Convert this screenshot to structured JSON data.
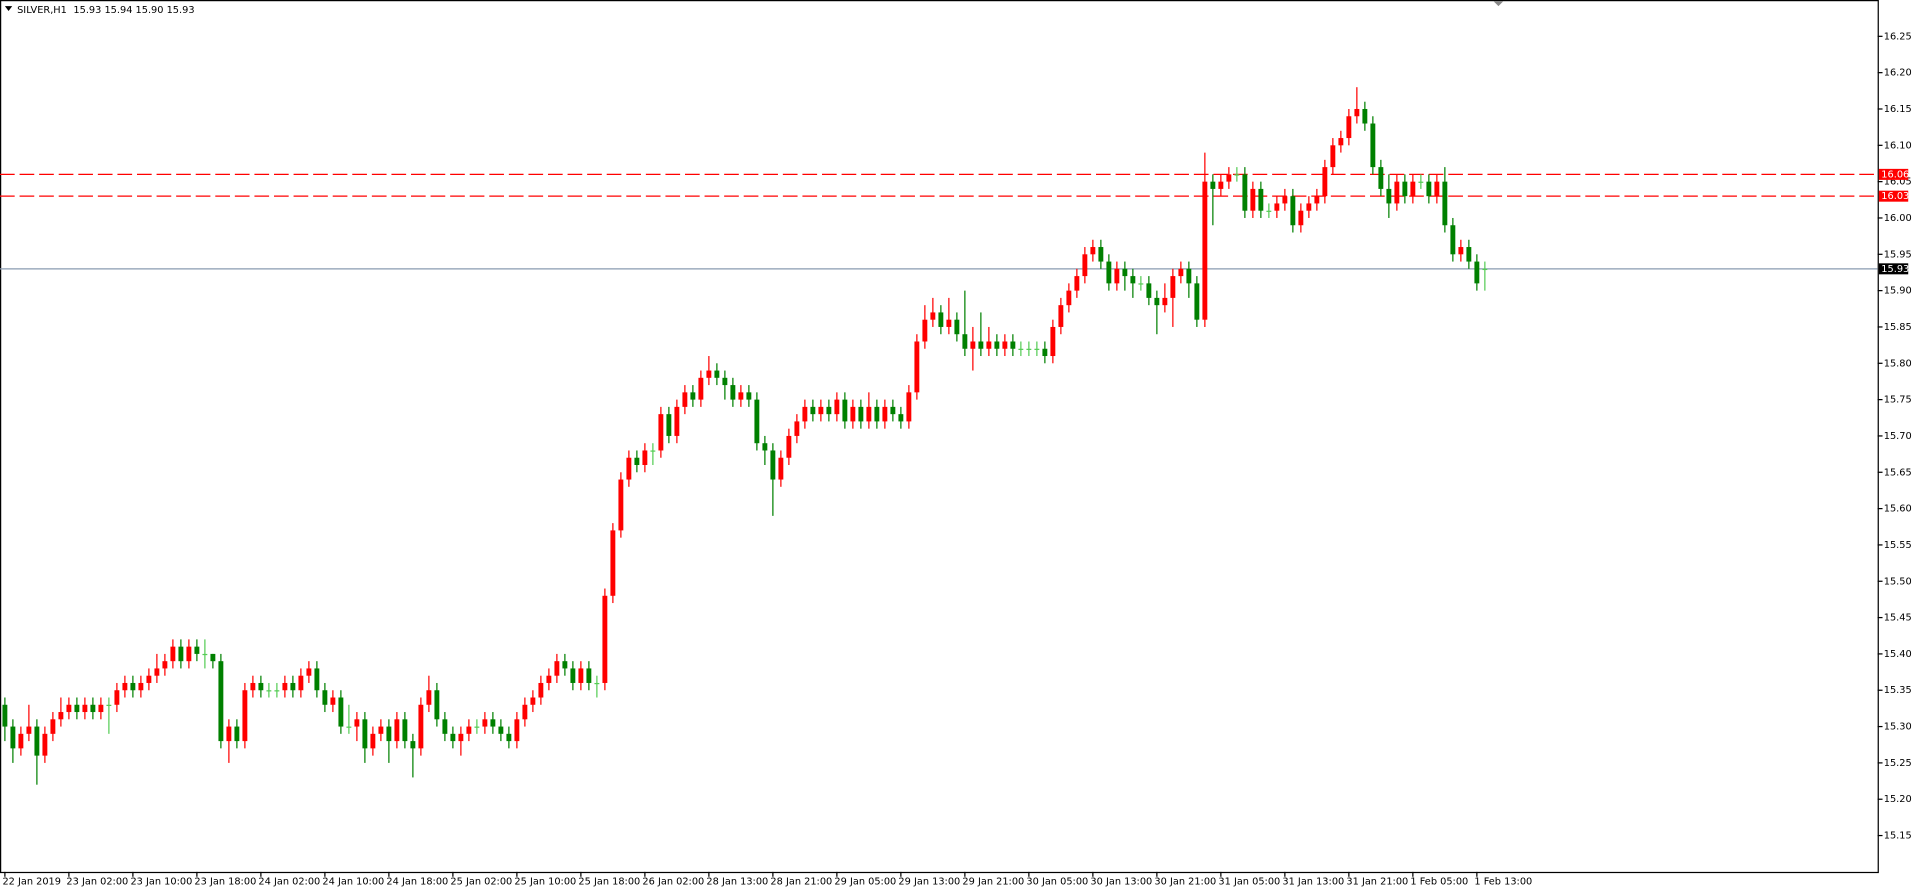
{
  "chart_data": {
    "type": "candlestick",
    "title": "SILVER,H1",
    "header": "15.93 15.94 15.90 15.93",
    "up_color": "#ff0000",
    "down_color": "#008000",
    "doji_color": "#55cc55",
    "ylim": [
      15.1,
      16.3
    ],
    "yticks": [
      15.15,
      {
        "value": 15.2,
        "label": "15.20"
      },
      15.25,
      {
        "value": 15.3,
        "label": "15.30"
      },
      15.35,
      {
        "value": 15.4,
        "label": "15.40"
      },
      15.45,
      {
        "value": 15.5,
        "label": "15.50"
      },
      15.55,
      {
        "value": 15.6,
        "label": "15.60"
      },
      15.65,
      {
        "value": 15.7,
        "label": "15.70"
      },
      15.75,
      {
        "value": 15.8,
        "label": "15.80"
      },
      15.85,
      {
        "value": 15.9,
        "label": "15.90"
      },
      15.95,
      {
        "value": 16,
        "label": "16.00"
      },
      16.05,
      {
        "value": 16.1,
        "label": "16.10"
      },
      16.15,
      {
        "value": 16.2,
        "label": "16.20"
      },
      16.25
    ],
    "levels": [
      {
        "value": 16.06,
        "color": "#ff0000",
        "style": "dashed"
      },
      {
        "value": 16.03,
        "color": "#ff0000",
        "style": "dashed"
      },
      {
        "value": 15.93,
        "color": "#8a9bb0",
        "style": "solid",
        "label_color": "#000000"
      }
    ],
    "categories": [
      "22 Jan 2019",
      null,
      null,
      null,
      null,
      null,
      null,
      null,
      "23 Jan 02:00",
      null,
      null,
      null,
      null,
      null,
      null,
      null,
      "23 Jan 10:00",
      null,
      null,
      null,
      null,
      null,
      null,
      null,
      "23 Jan 18:00",
      null,
      null,
      null,
      null,
      null,
      null,
      null,
      "24 Jan 02:00",
      null,
      null,
      null,
      null,
      null,
      null,
      null,
      "24 Jan 10:00",
      null,
      null,
      null,
      null,
      null,
      null,
      null,
      "24 Jan 18:00",
      null,
      null,
      null,
      null,
      null,
      null,
      null,
      "25 Jan 02:00",
      null,
      null,
      null,
      null,
      null,
      null,
      null,
      "25 Jan 10:00",
      null,
      null,
      null,
      null,
      null,
      null,
      null,
      "25 Jan 18:00",
      null,
      null,
      null,
      null,
      null,
      null,
      null,
      "26 Jan 02:00",
      null,
      null,
      null,
      null,
      null,
      null,
      null,
      "28 Jan 13:00",
      null,
      null,
      null,
      null,
      null,
      null,
      null,
      "28 Jan 21:00",
      null,
      null,
      null,
      null,
      null,
      null,
      null,
      "29 Jan 05:00",
      null,
      null,
      null,
      null,
      null,
      null,
      null,
      "29 Jan 13:00",
      null,
      null,
      null,
      null,
      null,
      null,
      null,
      "29 Jan 21:00",
      null,
      null,
      null,
      null,
      null,
      null,
      null,
      "30 Jan 05:00",
      null,
      null,
      null,
      null,
      null,
      null,
      null,
      "30 Jan 13:00",
      null,
      null,
      null,
      null,
      null,
      null,
      null,
      "30 Jan 21:00",
      null,
      null,
      null,
      null,
      null,
      null,
      null,
      "31 Jan 05:00",
      null,
      null,
      null,
      null,
      null,
      null,
      null,
      "31 Jan 13:00",
      null,
      null,
      null,
      null,
      null,
      null,
      null,
      "31 Jan 21:00",
      null,
      null,
      null,
      null,
      null,
      null,
      null,
      "1 Feb 05:00",
      null,
      null,
      null,
      null,
      null,
      null,
      null,
      "1 Feb 13:00",
      null
    ],
    "open": [
      15.33,
      15.3,
      15.27,
      15.29,
      15.3,
      15.26,
      15.29,
      15.31,
      15.32,
      15.33,
      15.32,
      15.33,
      15.32,
      15.33,
      15.33,
      15.35,
      15.36,
      15.35,
      15.36,
      15.37,
      15.38,
      15.39,
      15.41,
      15.39,
      15.41,
      15.4,
      15.4,
      15.39,
      15.28,
      15.3,
      15.28,
      15.35,
      15.36,
      15.35,
      15.35,
      15.35,
      15.36,
      15.35,
      15.37,
      15.38,
      15.35,
      15.33,
      15.34,
      15.3,
      15.3,
      15.31,
      15.27,
      15.29,
      15.3,
      15.28,
      15.31,
      15.28,
      15.27,
      15.33,
      15.35,
      15.31,
      15.29,
      15.28,
      15.29,
      15.3,
      15.3,
      15.31,
      15.3,
      15.29,
      15.28,
      15.31,
      15.33,
      15.34,
      15.36,
      15.37,
      15.39,
      15.38,
      15.36,
      15.38,
      15.36,
      15.36,
      15.48,
      15.57,
      15.64,
      15.67,
      15.66,
      15.68,
      15.68,
      15.73,
      15.7,
      15.74,
      15.76,
      15.75,
      15.78,
      15.79,
      15.78,
      15.77,
      15.75,
      15.76,
      15.75,
      15.69,
      15.68,
      15.64,
      15.67,
      15.7,
      15.72,
      15.74,
      15.73,
      15.74,
      15.73,
      15.75,
      15.72,
      15.74,
      15.72,
      15.74,
      15.72,
      15.74,
      15.73,
      15.72,
      15.76,
      15.83,
      15.86,
      15.87,
      15.85,
      15.86,
      15.84,
      15.82,
      15.83,
      15.82,
      15.83,
      15.82,
      15.83,
      15.82,
      15.82,
      15.82,
      15.82,
      15.81,
      15.85,
      15.88,
      15.9,
      15.92,
      15.95,
      15.96,
      15.94,
      15.91,
      15.93,
      15.92,
      15.91,
      15.91,
      15.89,
      15.88,
      15.89,
      15.92,
      15.93,
      15.91,
      15.86,
      16.05,
      16.04,
      16.05,
      16.06,
      16.06,
      16.01,
      16.04,
      16.01,
      16.01,
      16.02,
      16.03,
      15.99,
      16.01,
      16.02,
      16.03,
      16.07,
      16.1,
      16.11,
      16.14,
      16.15,
      16.13,
      16.07,
      16.04,
      16.02,
      16.05,
      16.03,
      16.05,
      16.05,
      16.03,
      16.05,
      15.99,
      15.95,
      15.96,
      15.94,
      15.93
    ],
    "high": [
      15.34,
      15.31,
      15.3,
      15.33,
      15.31,
      15.3,
      15.32,
      15.34,
      15.34,
      15.34,
      15.34,
      15.34,
      15.34,
      15.34,
      15.36,
      15.37,
      15.37,
      15.37,
      15.38,
      15.4,
      15.4,
      15.42,
      15.42,
      15.42,
      15.42,
      15.42,
      15.4,
      15.4,
      15.31,
      15.31,
      15.36,
      15.37,
      15.37,
      15.36,
      15.36,
      15.37,
      15.37,
      15.38,
      15.39,
      15.39,
      15.36,
      15.35,
      15.35,
      15.33,
      15.32,
      15.32,
      15.3,
      15.31,
      15.31,
      15.32,
      15.32,
      15.29,
      15.34,
      15.37,
      15.36,
      15.32,
      15.3,
      15.3,
      15.31,
      15.31,
      15.32,
      15.32,
      15.31,
      15.3,
      15.32,
      15.34,
      15.35,
      15.37,
      15.38,
      15.4,
      15.4,
      15.39,
      15.39,
      15.39,
      15.37,
      15.49,
      15.58,
      15.65,
      15.68,
      15.68,
      15.69,
      15.69,
      15.74,
      15.74,
      15.75,
      15.77,
      15.77,
      15.79,
      15.81,
      15.8,
      15.79,
      15.78,
      15.77,
      15.77,
      15.76,
      15.7,
      15.69,
      15.68,
      15.71,
      15.73,
      15.75,
      15.75,
      15.75,
      15.75,
      15.76,
      15.76,
      15.75,
      15.75,
      15.76,
      15.75,
      15.75,
      15.75,
      15.74,
      15.77,
      15.84,
      15.88,
      15.89,
      15.88,
      15.89,
      15.87,
      15.9,
      15.85,
      15.87,
      15.85,
      15.84,
      15.84,
      15.84,
      15.83,
      15.83,
      15.83,
      15.83,
      15.86,
      15.89,
      15.91,
      15.93,
      15.96,
      15.97,
      15.97,
      15.95,
      15.94,
      15.94,
      15.93,
      15.92,
      15.92,
      15.9,
      15.91,
      15.93,
      15.94,
      15.94,
      15.92,
      16.09,
      16.06,
      16.06,
      16.07,
      16.07,
      16.07,
      16.05,
      16.05,
      16.02,
      16.03,
      16.04,
      16.04,
      16.02,
      16.03,
      16.04,
      16.08,
      16.11,
      16.12,
      16.15,
      16.18,
      16.16,
      16.14,
      16.08,
      16.06,
      16.06,
      16.06,
      16.06,
      16.06,
      16.06,
      16.06,
      16.07,
      16.0,
      15.97,
      15.97,
      15.95,
      15.94
    ],
    "low": [
      15.28,
      15.25,
      15.26,
      15.28,
      15.22,
      15.25,
      15.28,
      15.3,
      15.31,
      15.31,
      15.31,
      15.31,
      15.31,
      15.29,
      15.32,
      15.34,
      15.34,
      15.34,
      15.35,
      15.36,
      15.37,
      15.38,
      15.38,
      15.38,
      15.39,
      15.38,
      15.38,
      15.27,
      15.25,
      15.27,
      15.27,
      15.34,
      15.34,
      15.34,
      15.34,
      15.34,
      15.34,
      15.34,
      15.36,
      15.34,
      15.32,
      15.32,
      15.29,
      15.29,
      15.28,
      15.25,
      15.26,
      15.28,
      15.25,
      15.27,
      15.27,
      15.23,
      15.26,
      15.32,
      15.3,
      15.28,
      15.27,
      15.26,
      15.28,
      15.29,
      15.29,
      15.29,
      15.28,
      15.27,
      15.27,
      15.3,
      15.32,
      15.33,
      15.35,
      15.36,
      15.37,
      15.35,
      15.35,
      15.35,
      15.34,
      15.35,
      15.47,
      15.56,
      15.63,
      15.65,
      15.65,
      15.66,
      15.67,
      15.69,
      15.69,
      15.73,
      15.74,
      15.74,
      15.77,
      15.77,
      15.75,
      15.74,
      15.74,
      15.74,
      15.68,
      15.66,
      15.59,
      15.63,
      15.66,
      15.69,
      15.71,
      15.72,
      15.72,
      15.72,
      15.72,
      15.71,
      15.71,
      15.71,
      15.71,
      15.71,
      15.71,
      15.72,
      15.71,
      15.71,
      15.75,
      15.82,
      15.85,
      15.84,
      15.84,
      15.83,
      15.81,
      15.79,
      15.81,
      15.81,
      15.81,
      15.81,
      15.81,
      15.81,
      15.81,
      15.81,
      15.8,
      15.8,
      15.84,
      15.87,
      15.89,
      15.91,
      15.94,
      15.93,
      15.9,
      15.9,
      15.9,
      15.89,
      15.9,
      15.88,
      15.84,
      15.87,
      15.85,
      15.91,
      15.89,
      15.85,
      15.85,
      15.99,
      16.03,
      16.04,
      16.05,
      16.0,
      16.0,
      16.0,
      16.0,
      16.0,
      16.01,
      15.98,
      15.98,
      16.0,
      16.01,
      16.02,
      16.06,
      16.09,
      16.1,
      16.13,
      16.12,
      16.06,
      16.03,
      16.0,
      16.01,
      16.02,
      16.02,
      16.04,
      16.02,
      16.02,
      15.98,
      15.94,
      15.94,
      15.93,
      15.9,
      15.9
    ],
    "close": [
      15.3,
      15.27,
      15.29,
      15.3,
      15.26,
      15.29,
      15.31,
      15.32,
      15.33,
      15.32,
      15.33,
      15.32,
      15.33,
      15.33,
      15.35,
      15.36,
      15.35,
      15.36,
      15.37,
      15.38,
      15.39,
      15.41,
      15.39,
      15.41,
      15.4,
      15.4,
      15.39,
      15.28,
      15.3,
      15.28,
      15.35,
      15.36,
      15.35,
      15.35,
      15.35,
      15.36,
      15.35,
      15.37,
      15.38,
      15.35,
      15.33,
      15.34,
      15.3,
      15.3,
      15.31,
      15.27,
      15.29,
      15.3,
      15.28,
      15.31,
      15.28,
      15.27,
      15.33,
      15.35,
      15.31,
      15.29,
      15.28,
      15.29,
      15.3,
      15.3,
      15.31,
      15.3,
      15.29,
      15.28,
      15.31,
      15.33,
      15.34,
      15.36,
      15.37,
      15.39,
      15.38,
      15.36,
      15.38,
      15.36,
      15.36,
      15.48,
      15.57,
      15.64,
      15.67,
      15.66,
      15.68,
      15.68,
      15.73,
      15.7,
      15.74,
      15.76,
      15.75,
      15.78,
      15.79,
      15.78,
      15.77,
      15.75,
      15.76,
      15.75,
      15.69,
      15.68,
      15.64,
      15.67,
      15.7,
      15.72,
      15.74,
      15.73,
      15.74,
      15.73,
      15.75,
      15.72,
      15.74,
      15.72,
      15.74,
      15.72,
      15.74,
      15.73,
      15.72,
      15.76,
      15.83,
      15.86,
      15.87,
      15.85,
      15.86,
      15.84,
      15.82,
      15.83,
      15.82,
      15.83,
      15.82,
      15.83,
      15.82,
      15.82,
      15.82,
      15.82,
      15.81,
      15.85,
      15.88,
      15.9,
      15.92,
      15.95,
      15.96,
      15.94,
      15.91,
      15.93,
      15.92,
      15.91,
      15.91,
      15.89,
      15.88,
      15.89,
      15.92,
      15.93,
      15.91,
      15.86,
      16.05,
      16.04,
      16.05,
      16.06,
      16.06,
      16.01,
      16.04,
      16.01,
      16.01,
      16.02,
      16.03,
      15.99,
      16.01,
      16.02,
      16.03,
      16.07,
      16.1,
      16.11,
      16.14,
      16.15,
      16.13,
      16.07,
      16.04,
      16.02,
      16.05,
      16.03,
      16.05,
      16.05,
      16.03,
      16.05,
      15.99,
      15.95,
      15.96,
      15.94,
      15.91,
      15.93
    ]
  }
}
